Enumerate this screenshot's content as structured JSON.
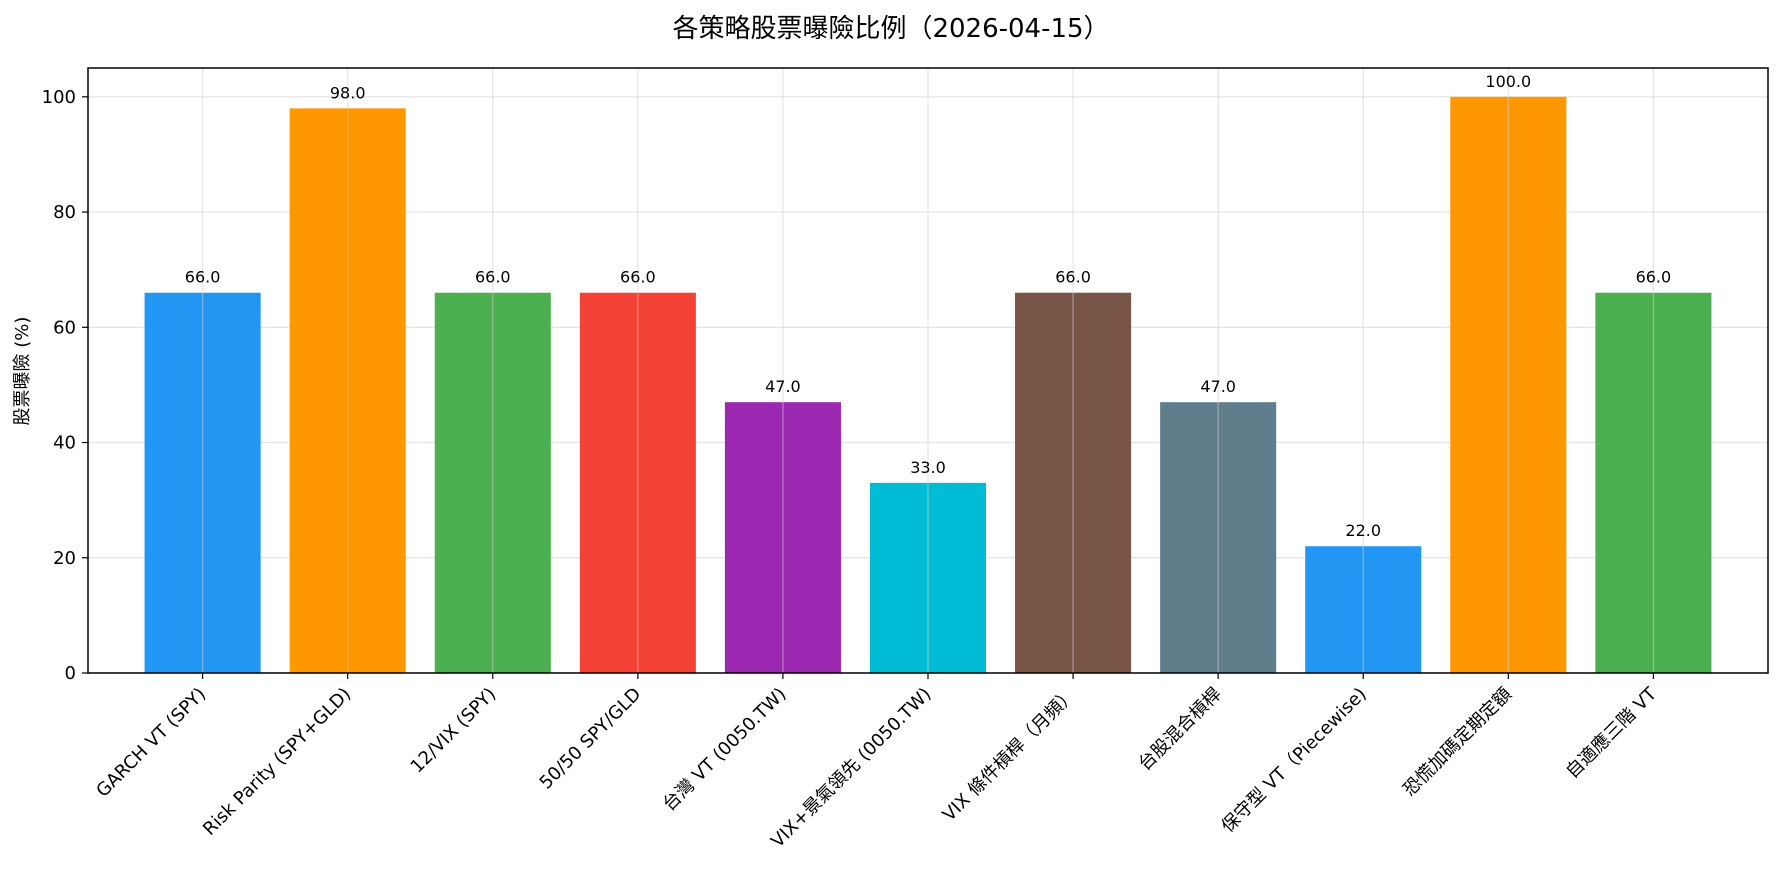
{
  "chart_data": {
    "type": "bar",
    "title": "各策略股票曝險比例（2026-04-15）",
    "xlabel": "",
    "ylabel": "股票曝險 (%)",
    "ylim": [
      0,
      105
    ],
    "yticks": [
      0,
      20,
      40,
      60,
      80,
      100
    ],
    "grid": true,
    "categories": [
      "GARCH VT (SPY)",
      "Risk Parity (SPY+GLD)",
      "12/VIX (SPY)",
      "50/50 SPY/GLD",
      "台灣 VT (0050.TW)",
      "VIX+景氣領先 (0050.TW)",
      "VIX 條件槓桿（月頻）",
      "台股混合槓桿",
      "保守型 VT（Piecewise)",
      "恐慌加碼定期定額",
      "自適應三階 VT"
    ],
    "values": [
      66.0,
      98.0,
      66.0,
      66.0,
      47.0,
      33.0,
      66.0,
      47.0,
      22.0,
      100.0,
      66.0
    ],
    "value_labels": [
      "66.0",
      "98.0",
      "66.0",
      "66.0",
      "47.0",
      "33.0",
      "66.0",
      "47.0",
      "22.0",
      "100.0",
      "66.0"
    ],
    "colors": [
      "#2196F3",
      "#FF9800",
      "#4CAF50",
      "#F44336",
      "#9C27B0",
      "#00BCD4",
      "#795548",
      "#607D8B",
      "#2196F3",
      "#FF9800",
      "#4CAF50"
    ]
  }
}
